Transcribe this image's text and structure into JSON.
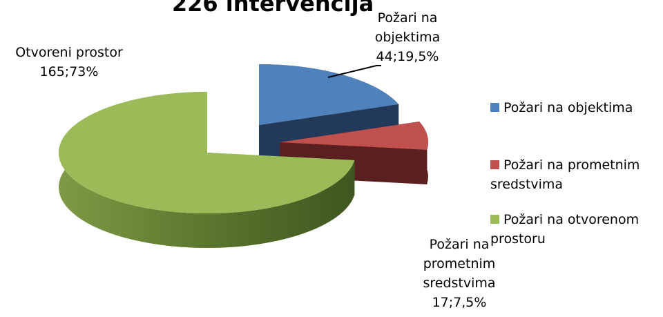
{
  "chart_data": {
    "type": "pie",
    "title": "226 intervencija",
    "categories": [
      "Požari na objektima",
      "Požari na prometnim sredstvima",
      "Požari na otvorenom prostoru"
    ],
    "values": [
      44,
      17,
      165
    ],
    "value_labels": [
      "44;19,5%",
      "17;7,5%",
      "165;73%"
    ],
    "data_label_names": [
      "Požari na objektima",
      "Požari na prometnim sredstvima",
      "Otvoreni prostor"
    ],
    "colors": [
      "#4f81bd",
      "#c0504d",
      "#9bbb59"
    ],
    "legend": "right"
  }
}
